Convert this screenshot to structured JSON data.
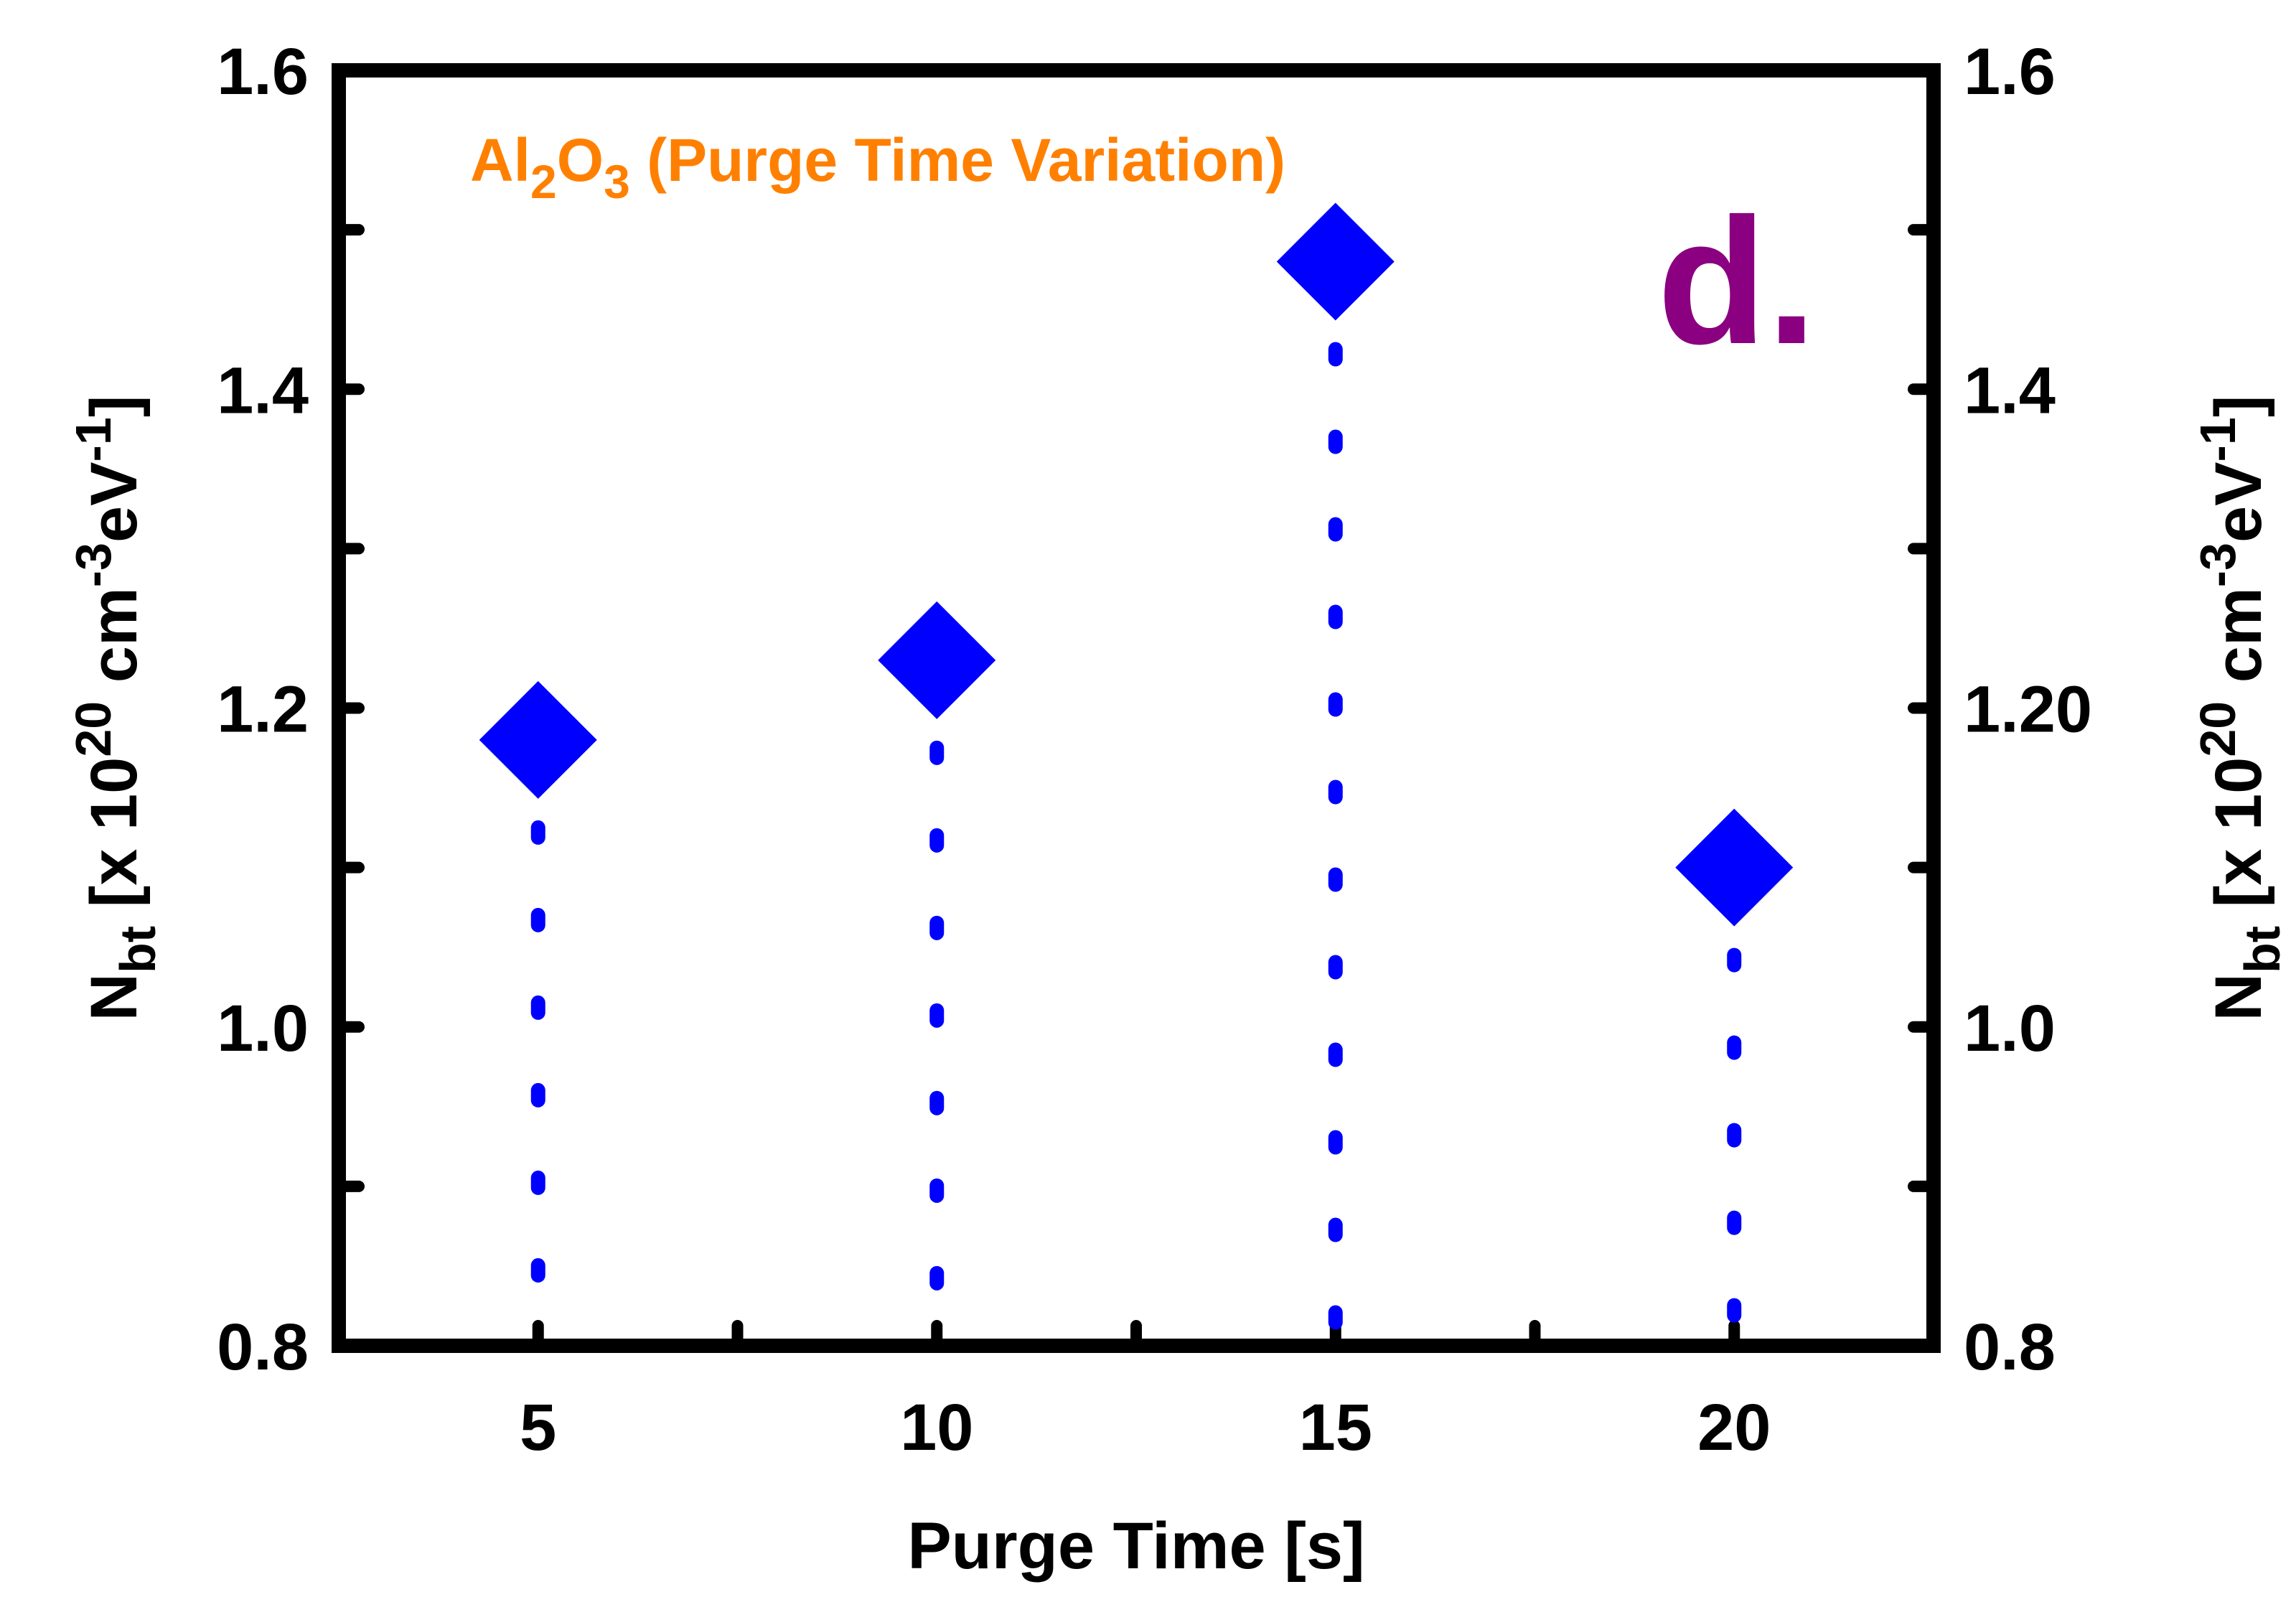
{
  "chart_data": {
    "type": "scatter",
    "x": [
      5,
      10,
      15,
      20
    ],
    "y": [
      1.18,
      1.23,
      1.48,
      1.1
    ],
    "marker": "diamond",
    "marker_color": "#0000FF",
    "stem_line": "dotted",
    "xlabel": "Purge Time [s]",
    "ylabel": {
      "base": "N",
      "sub1": "bt",
      "mid1": " [x 10",
      "sup1": "20",
      "mid2": " cm",
      "sup2": "-3",
      "mid3": "eV",
      "sup3": "-1",
      "end": "]"
    },
    "xlim": [
      2.5,
      22.5
    ],
    "ylim": [
      0.8,
      1.6
    ],
    "x_ticks": [
      "5",
      "10",
      "15",
      "20"
    ],
    "x_tick_values": [
      5,
      10,
      15,
      20
    ],
    "x_minor_tick_values": [
      2.5,
      7.5,
      12.5,
      17.5
    ],
    "y_ticks_left": [
      "0.8",
      "1.0",
      "1.2",
      "1.4",
      "1.6"
    ],
    "y_ticks_right": [
      "0.8",
      "1.0",
      "1.20",
      "1.4",
      "1.6"
    ],
    "y_tick_values": [
      0.8,
      1.0,
      1.2,
      1.4,
      1.6
    ],
    "y_minor_tick_values": [
      0.9,
      1.1,
      1.3,
      1.5
    ],
    "annotation": {
      "prefix": "Al",
      "sub1": "2",
      "mid": "O",
      "sub2": "3",
      "suffix": " (Purge Time Variation)",
      "color": "#FF8000"
    },
    "panel_label": {
      "text": "d.",
      "color": "#8B0080"
    },
    "grid": false
  }
}
